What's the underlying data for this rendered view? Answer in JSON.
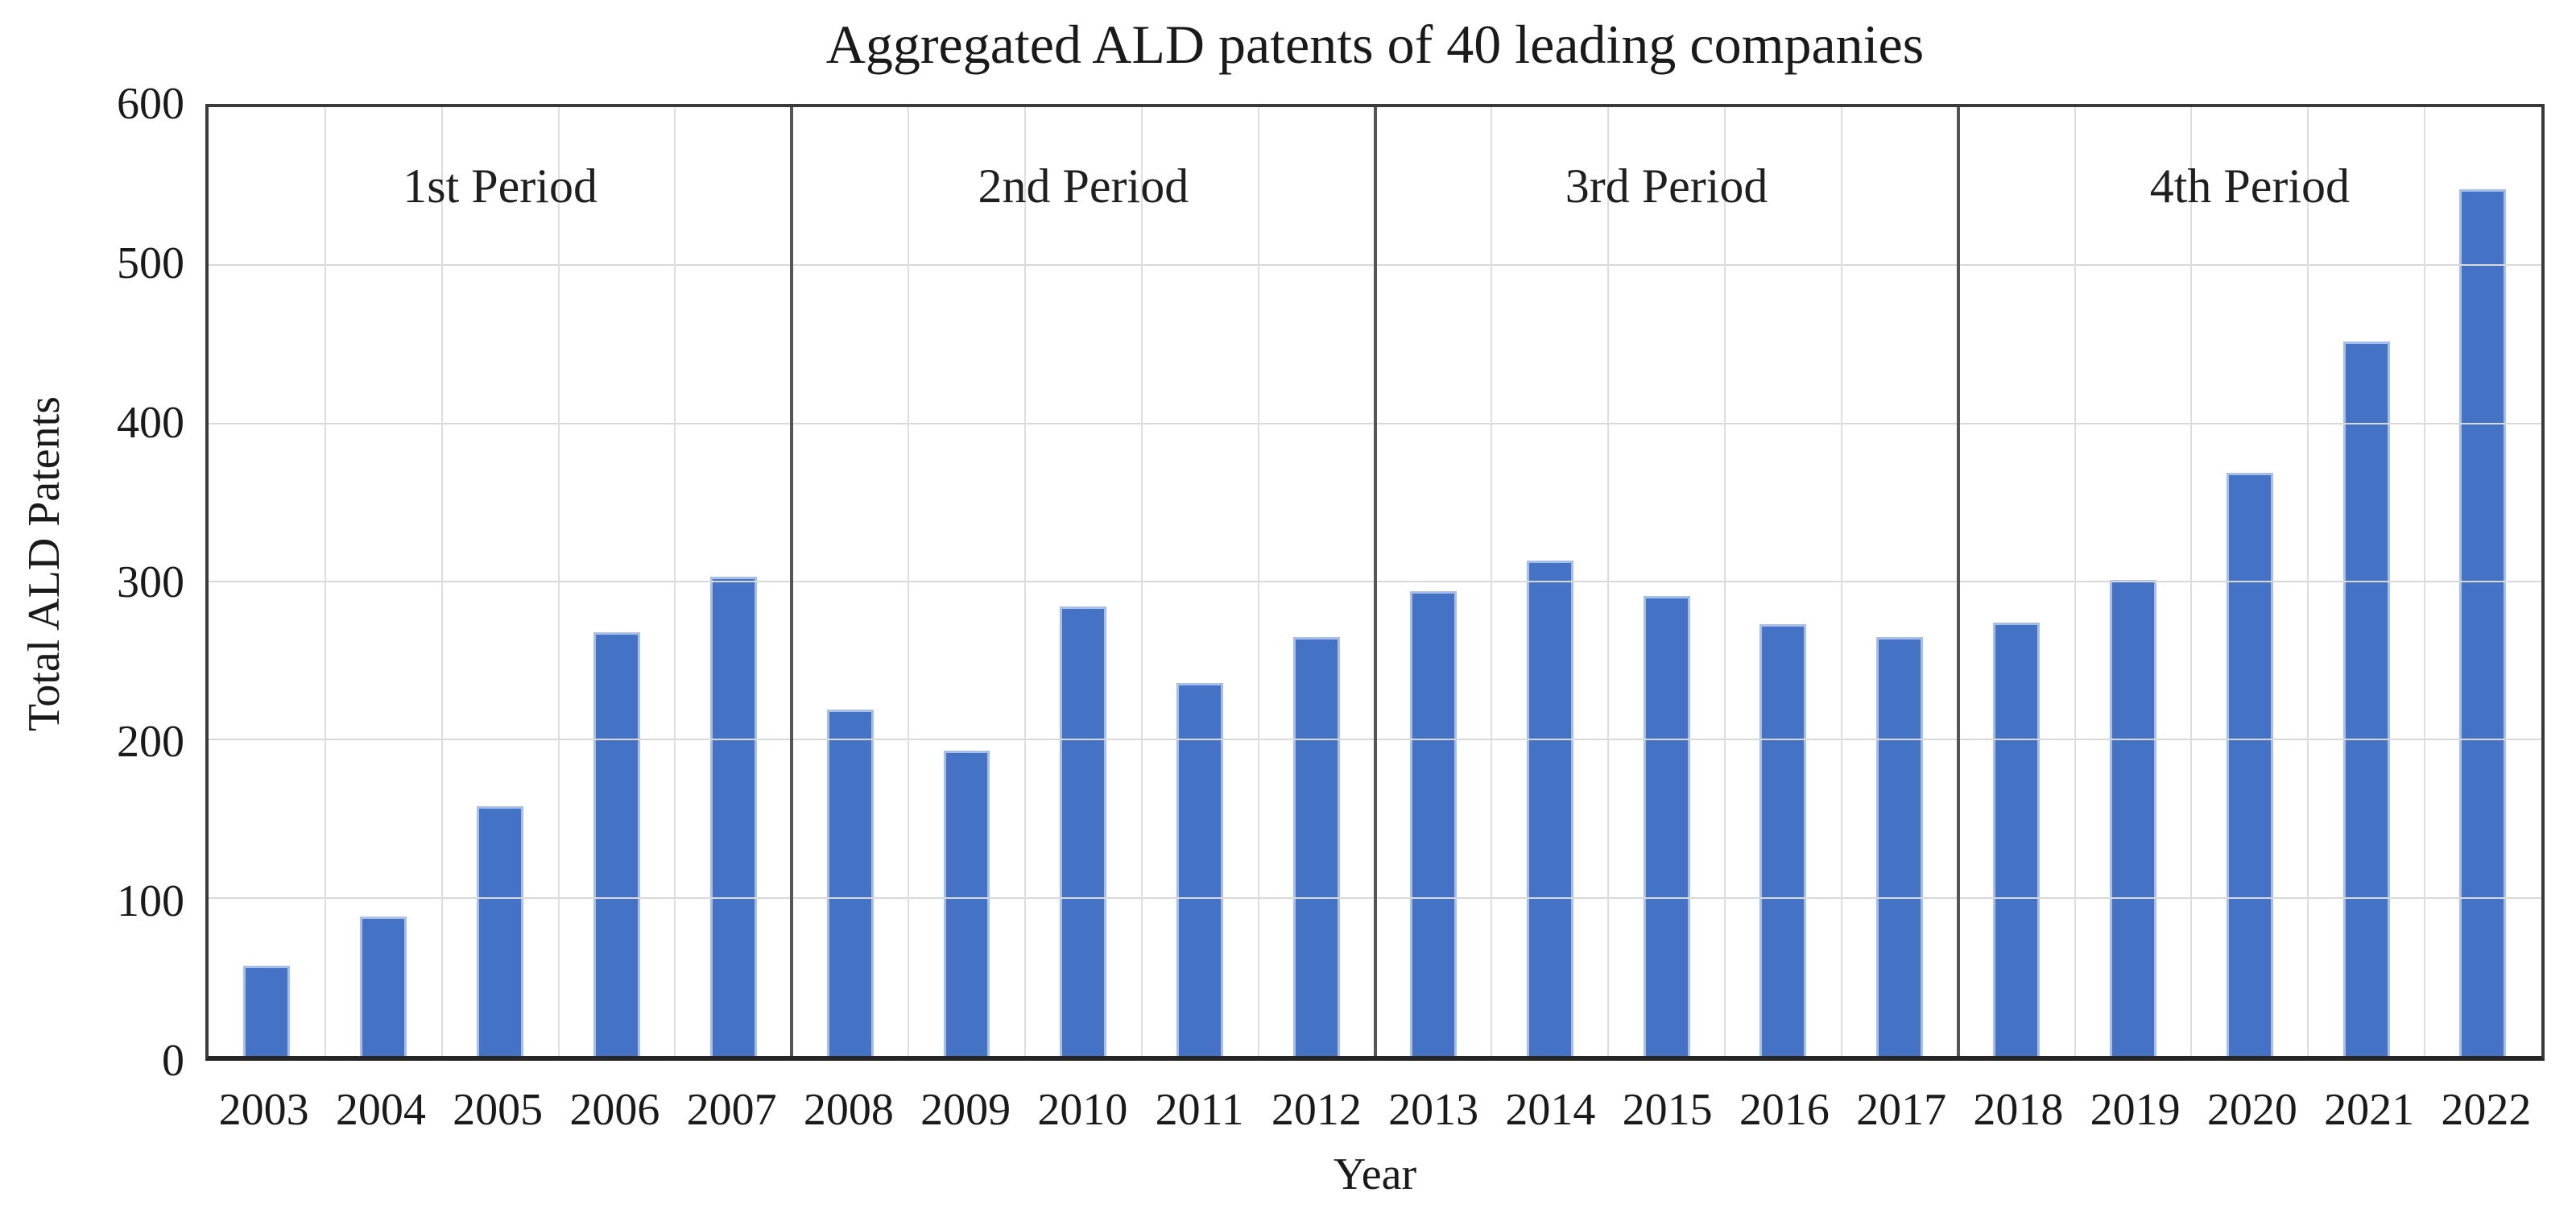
{
  "title": "Aggregated ALD patents of 40 leading companies",
  "axes": {
    "y_label": "Total ALD Patents",
    "x_label": "Year",
    "y_ticks": [
      0,
      100,
      200,
      300,
      400,
      500,
      600
    ]
  },
  "colors": {
    "bar_fill": "#4472C4",
    "bar_edge": "#A7BFE8",
    "gridline": "#D9D9D9",
    "period_divider": "#555555",
    "plot_border": "#3A3A3A",
    "text": "#1A1A1A"
  },
  "chart_data": {
    "type": "bar",
    "title": "Aggregated ALD patents of 40 leading companies",
    "xlabel": "Year",
    "ylabel": "Total ALD Patents",
    "ylim": [
      0,
      600
    ],
    "y_tick_step": 100,
    "grid": true,
    "legend": "none",
    "categories": [
      "2003",
      "2004",
      "2005",
      "2006",
      "2007",
      "2008",
      "2009",
      "2010",
      "2011",
      "2012",
      "2013",
      "2014",
      "2015",
      "2016",
      "2017",
      "2018",
      "2019",
      "2020",
      "2021",
      "2022"
    ],
    "values": [
      57,
      88,
      158,
      268,
      303,
      219,
      193,
      284,
      236,
      265,
      294,
      313,
      291,
      273,
      265,
      274,
      301,
      369,
      452,
      548
    ],
    "period_labels": [
      "1st Period",
      "2nd Period",
      "3rd Period",
      "4th Period"
    ],
    "years_per_period": 5,
    "period_divider_after": [
      "2007",
      "2012",
      "2017"
    ]
  }
}
